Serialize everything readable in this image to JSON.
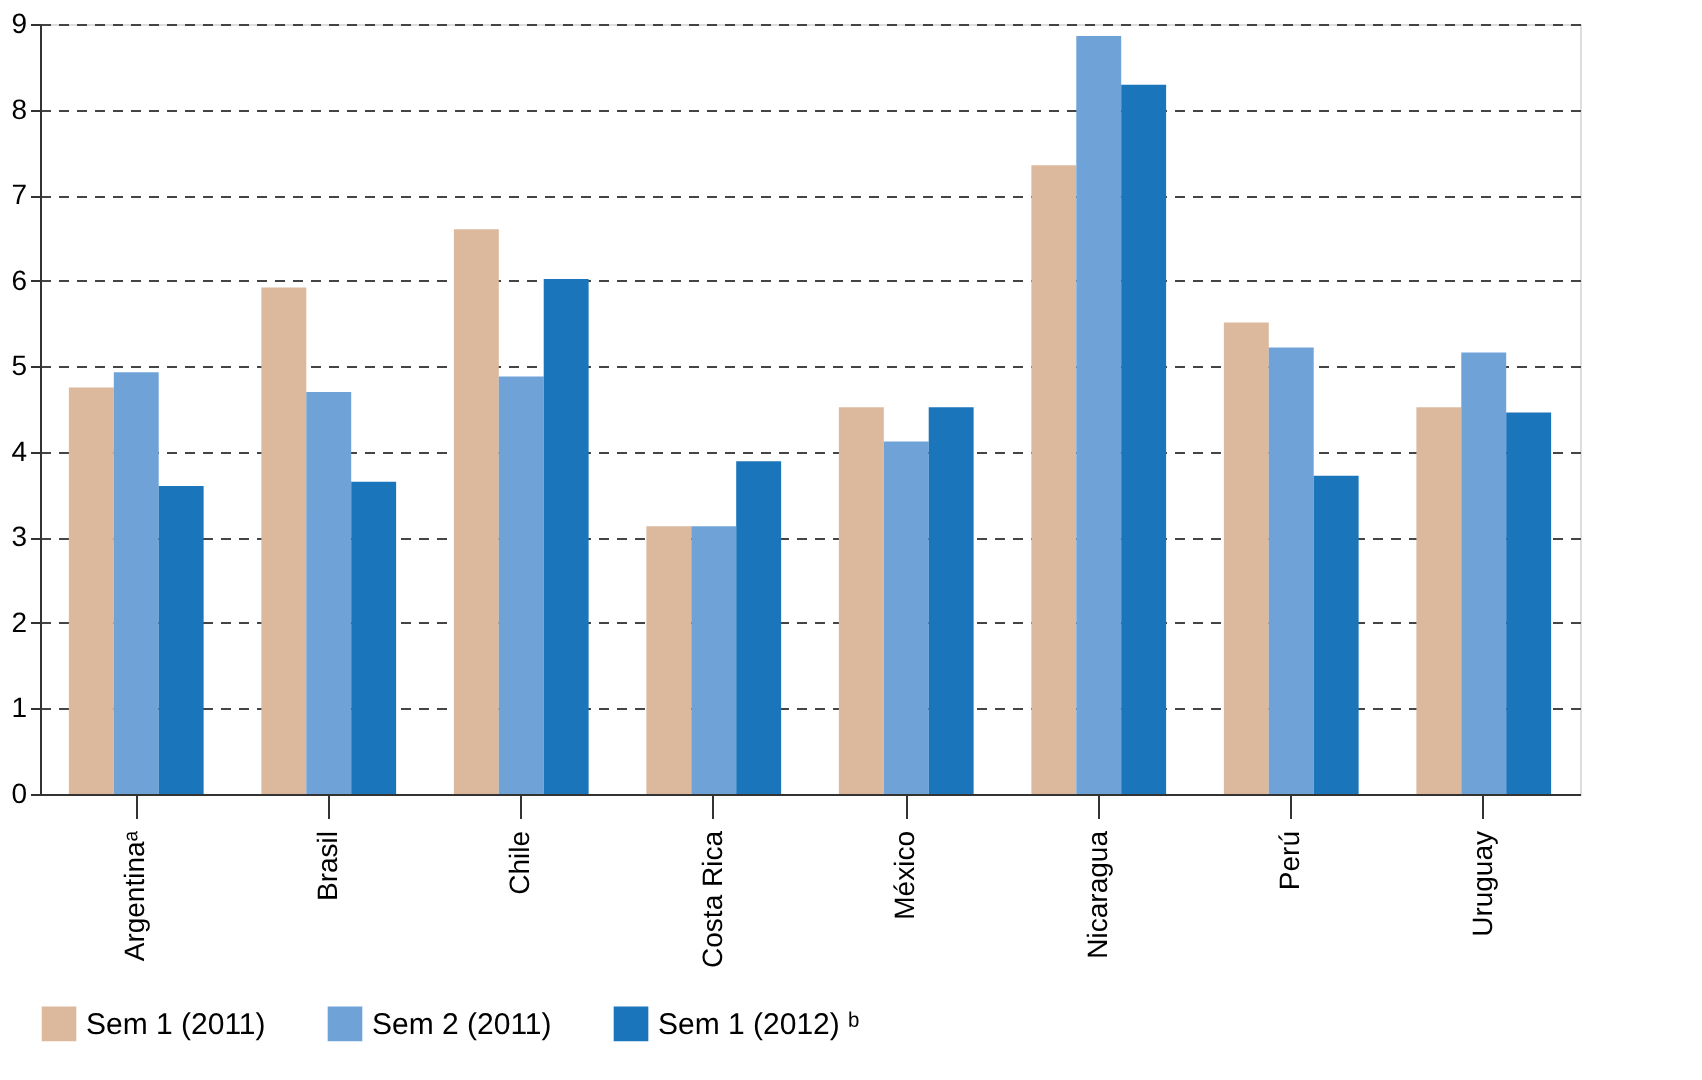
{
  "chart_data": {
    "type": "bar",
    "categories": [
      "Argentinaᵃ",
      "Brasil",
      "Chile",
      "Costa Rica",
      "México",
      "Nicaragua",
      "Perú",
      "Uruguay"
    ],
    "series": [
      {
        "name": "Sem 1 (2011)",
        "color": "#dcb99d",
        "values": [
          4.75,
          5.92,
          6.6,
          3.13,
          4.52,
          7.35,
          5.51,
          4.52
        ]
      },
      {
        "name": "Sem 2 (2011)",
        "color": "#6fa3d8",
        "values": [
          4.93,
          4.7,
          4.88,
          3.13,
          4.12,
          8.86,
          5.22,
          5.16
        ]
      },
      {
        "name": "Sem 1 (2012) ᵇ",
        "color": "#1b75bb",
        "values": [
          3.6,
          3.65,
          6.02,
          3.89,
          4.52,
          8.29,
          3.72,
          4.46
        ]
      }
    ],
    "ylim": [
      0,
      9
    ],
    "yticks": [
      0,
      1,
      2,
      3,
      4,
      5,
      6,
      7,
      8,
      9
    ],
    "grid": "y",
    "legend": "bottom"
  }
}
